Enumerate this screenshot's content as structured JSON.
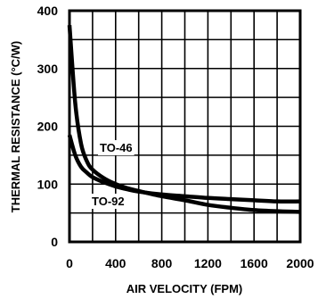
{
  "chart_data": {
    "type": "line",
    "title": "",
    "xlabel": "AIR VELOCITY (FPM)",
    "ylabel": "THERMAL RESISTANCE (°C/W)",
    "xlim": [
      0,
      2000
    ],
    "ylim": [
      0,
      400
    ],
    "x_ticks": [
      0,
      400,
      800,
      1200,
      1600,
      2000
    ],
    "x_tick_labels": [
      "0",
      "400",
      "800",
      "1200",
      "1600",
      "2000"
    ],
    "y_ticks": [
      0,
      100,
      200,
      300,
      400
    ],
    "y_tick_labels": [
      "0",
      "100",
      "200",
      "300",
      "400"
    ],
    "grid": true,
    "x_minor_step": 200,
    "y_minor_step": 50,
    "line_color": "#000000",
    "series": [
      {
        "name": "TO-46",
        "x": [
          0,
          50,
          100,
          150,
          200,
          300,
          400,
          500,
          600,
          800,
          1000,
          1200,
          1400,
          1600,
          1800,
          2000
        ],
        "y": [
          375,
          240,
          170,
          140,
          125,
          110,
          100,
          93,
          88,
          79,
          72,
          64,
          59,
          55,
          53,
          52
        ]
      },
      {
        "name": "TO-92",
        "x": [
          0,
          50,
          100,
          150,
          200,
          300,
          400,
          500,
          600,
          800,
          1000,
          1200,
          1400,
          1600,
          1800,
          2000
        ],
        "y": [
          185,
          150,
          130,
          120,
          112,
          103,
          96,
          91,
          87,
          82,
          79,
          76,
          74,
          72,
          70,
          70
        ]
      }
    ]
  }
}
